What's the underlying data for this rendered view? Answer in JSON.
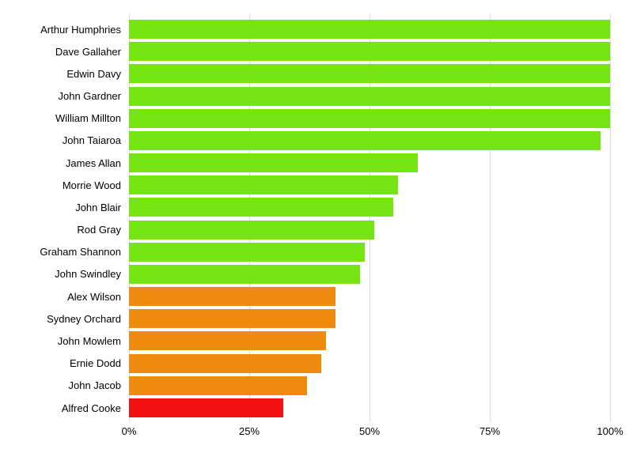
{
  "chart_data": {
    "type": "bar",
    "orientation": "horizontal",
    "title": "",
    "xlabel": "",
    "ylabel": "",
    "xlim": [
      0,
      100
    ],
    "x_ticks": [
      "0%",
      "25%",
      "50%",
      "75%",
      "100%"
    ],
    "x_tick_values": [
      0,
      25,
      50,
      75,
      100
    ],
    "grid": "vertical",
    "legend": "none",
    "palette": {
      "green": "#74E510",
      "orange": "#EE8A0D",
      "red": "#F41111"
    },
    "gridline_color": "#d9d9d9",
    "categories": [
      "Arthur Humphries",
      "Dave Gallaher",
      "Edwin Davy",
      "John Gardner",
      "William Millton",
      "John Taiaroa",
      "James Allan",
      "Morrie Wood",
      "John Blair",
      "Rod Gray",
      "Graham Shannon",
      "John Swindley",
      "Alex Wilson",
      "Sydney Orchard",
      "John Mowlem",
      "Ernie Dodd",
      "John Jacob",
      "Alfred Cooke"
    ],
    "values": [
      100,
      100,
      100,
      100,
      100,
      98,
      60,
      56,
      55,
      51,
      49,
      48,
      43,
      43,
      41,
      40,
      37,
      32
    ],
    "colors": [
      "green",
      "green",
      "green",
      "green",
      "green",
      "green",
      "green",
      "green",
      "green",
      "green",
      "green",
      "green",
      "orange",
      "orange",
      "orange",
      "orange",
      "orange",
      "red"
    ]
  }
}
